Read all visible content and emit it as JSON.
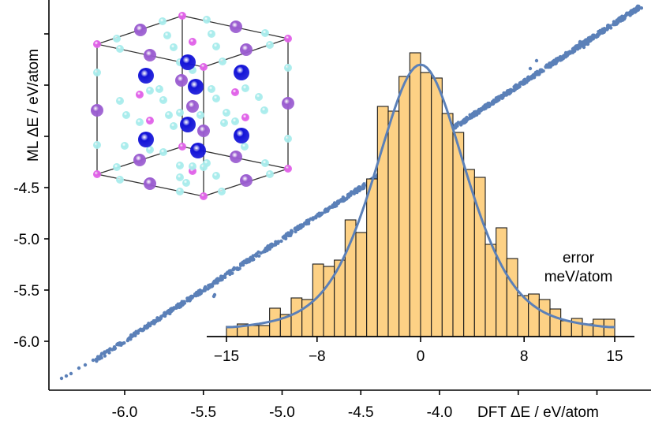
{
  "chart_data": [
    {
      "type": "scatter",
      "title": "",
      "xlabel": "DFT ΔE / eV/atom",
      "ylabel": "ML ΔE / eV/atom",
      "xlim": [
        -6.4,
        -3.25
      ],
      "ylim": [
        -6.45,
        -2.8
      ],
      "x_ticks": [
        -6.0,
        -5.5,
        -5.0,
        -4.5,
        -4.0,
        -3.5,
        -3.0
      ],
      "x_tick_labels": [
        "-6.0",
        "-5.5",
        "-5.0",
        "-4.5",
        "-4.0",
        "",
        ""
      ],
      "y_ticks": [
        -6.0,
        -5.5,
        -5.0,
        -4.5,
        -4.0,
        -3.5,
        -3.0
      ],
      "y_tick_labels": [
        "-6.0",
        "-5.5",
        "-5.0",
        "-4.5",
        "",
        "",
        ""
      ],
      "grid": false,
      "series": [
        {
          "name": "ML vs DFT",
          "color": "#5b80b8",
          "description": "dense points along the parity line y = x",
          "x": [
            -6.38,
            -6.33,
            -6.28,
            -6.2,
            -6.1,
            -6.0,
            -5.9,
            -5.8,
            -5.7,
            -5.6,
            -5.5,
            -5.4,
            -5.3,
            -5.2,
            -5.1,
            -5.0,
            -4.9,
            -4.8,
            -4.7,
            -4.6,
            -4.5,
            -4.4,
            -4.3,
            -4.2,
            -4.1,
            -4.0,
            -3.9,
            -3.8,
            -3.7,
            -3.6,
            -3.5,
            -3.4,
            -3.3
          ],
          "y": [
            -6.38,
            -6.33,
            -6.28,
            -6.2,
            -6.1,
            -6.0,
            -5.9,
            -5.8,
            -5.7,
            -5.6,
            -5.5,
            -5.4,
            -5.3,
            -5.2,
            -5.1,
            -5.0,
            -4.9,
            -4.8,
            -4.7,
            -4.6,
            -4.5,
            -4.4,
            -4.3,
            -4.2,
            -4.1,
            -4.0,
            -3.9,
            -3.8,
            -3.7,
            -3.6,
            -3.5,
            -3.4,
            -3.3
          ]
        }
      ]
    },
    {
      "type": "bar",
      "title": "",
      "xlabel": "error\nmeV/atom",
      "xlabel_lines": [
        "error",
        "meV/atom"
      ],
      "ylabel": "",
      "xlim": [
        -16.5,
        16.5
      ],
      "x_ticks": [
        -15,
        -8,
        0,
        8,
        15
      ],
      "x_tick_labels": [
        "−15",
        "−8",
        "0",
        "8",
        "15"
      ],
      "bin_range": [
        -15,
        15
      ],
      "bin_count": 36,
      "bar_color": "#fdd185",
      "edge_color": "#1a1a1a",
      "values": [
        13,
        16,
        14,
        14,
        36,
        28,
        49,
        47,
        92,
        89,
        97,
        148,
        132,
        200,
        292,
        286,
        330,
        360,
        335,
        328,
        283,
        259,
        212,
        202,
        117,
        138,
        99,
        52,
        54,
        47,
        35,
        20,
        23,
        16,
        22,
        22
      ],
      "fit": {
        "type": "gaussian-like",
        "color": "#5b80b8",
        "center": 0,
        "peak": 345
      },
      "inset": true
    }
  ],
  "inset_image": {
    "name": "crystal-structure",
    "description": "cubic unit cell with atoms",
    "atom_colors": {
      "large-purple": "#9a5cd0",
      "blue": "#1414d8",
      "magenta": "#e060e8",
      "cyan": "#a8ecec"
    }
  },
  "labels": {
    "x_axis_title": "DFT ΔE / eV/atom",
    "y_axis_title": "ML ΔE / eV/atom",
    "hist_label_line1": "error",
    "hist_label_line2": "meV/atom"
  }
}
